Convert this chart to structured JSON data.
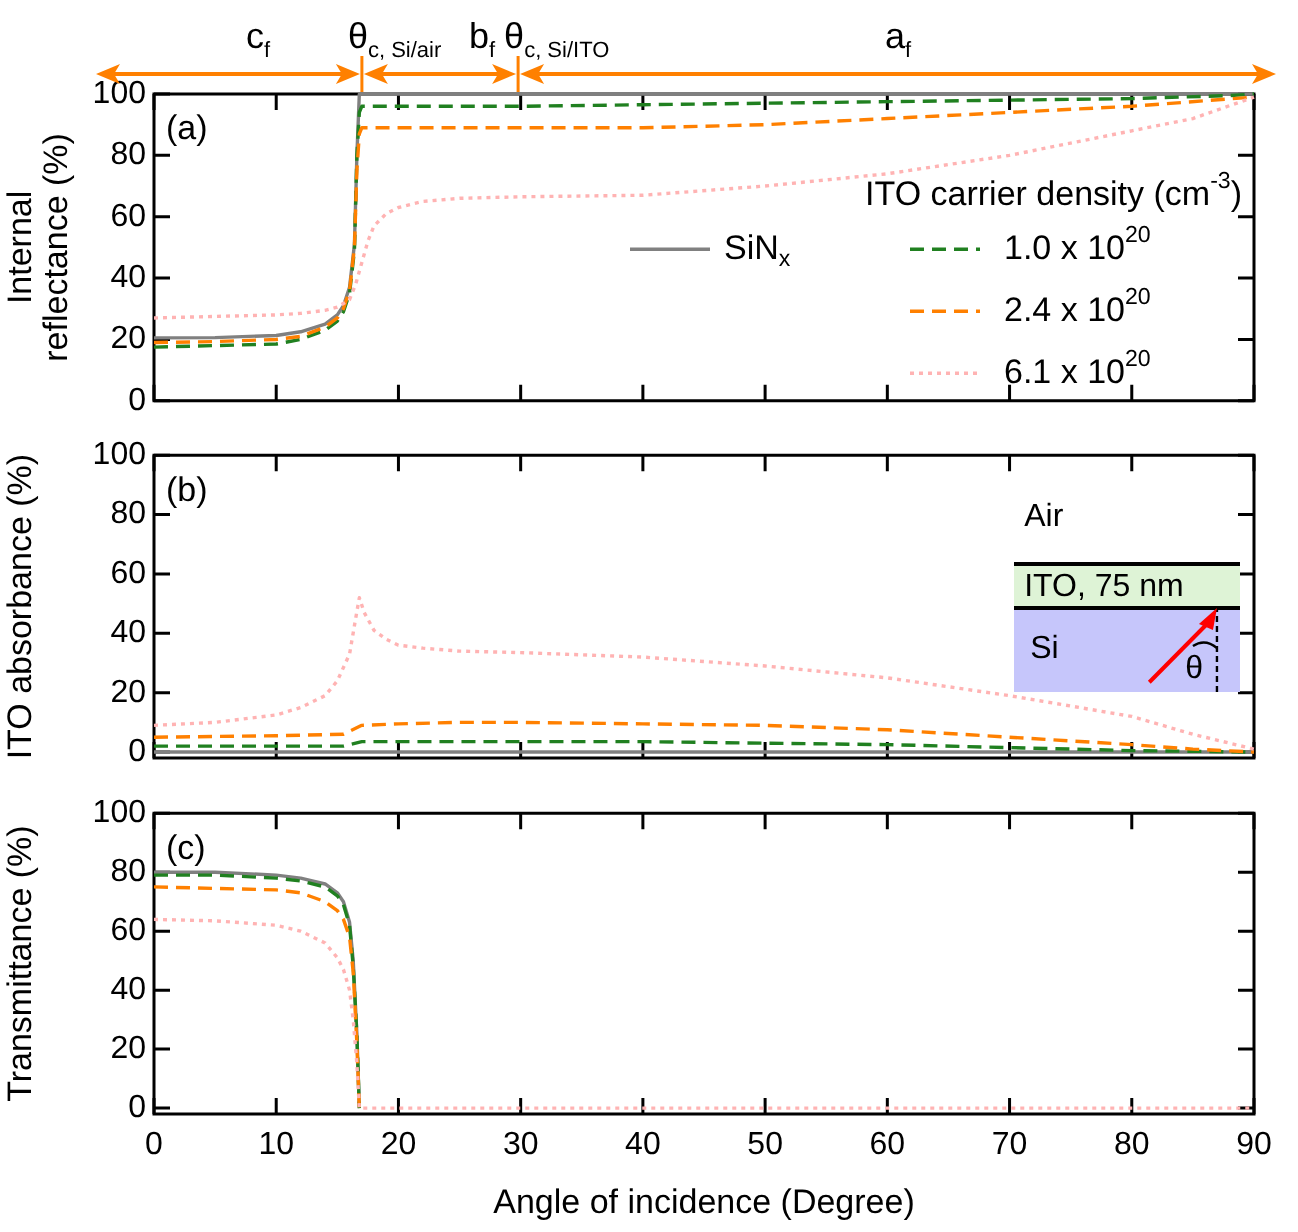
{
  "chart_data": [
    {
      "type": "line",
      "ylabel": "Internal reflectance (%)",
      "xlim": [
        0,
        90
      ],
      "xticks": [
        0,
        10,
        20,
        30,
        40,
        50,
        60,
        70,
        80,
        90
      ],
      "ylim": [
        0,
        100
      ],
      "yticks": [
        0,
        20,
        40,
        60,
        80,
        100
      ],
      "tick_labels": "y",
      "grid": false,
      "legend": "right",
      "legend_title": "ITO carrier density (cm$^{-3}$)",
      "annotations": [
        "(a)",
        "c$_{f}$",
        "θ$_{c, Si/air}$",
        "b$_{f}$",
        "θ$_{c, Si/ITO}$",
        "a$_{f}$"
      ],
      "series": [
        {
          "name": "SiN$_{x}$",
          "color": "#808080",
          "line_style": "solid",
          "x": [
            0,
            5,
            10,
            12,
            14,
            15,
            15.5,
            16,
            16.4,
            16.6,
            16.8,
            20,
            40,
            60,
            80,
            90
          ],
          "values": [
            20.5,
            20.6,
            21.3,
            22.5,
            25,
            28,
            31,
            37,
            51,
            80,
            100,
            100,
            100,
            100,
            100,
            100
          ]
        },
        {
          "name": "1.0 x 10$^{20}$",
          "color": "#208020",
          "line_style": "dashed",
          "x": [
            0,
            5,
            10,
            12,
            14,
            15,
            15.5,
            16,
            16.4,
            16.6,
            16.8,
            17,
            30,
            40,
            50,
            60,
            70,
            80,
            88,
            90
          ],
          "values": [
            17.5,
            18,
            18.5,
            20,
            23,
            26,
            29,
            35,
            49,
            80,
            94,
            96,
            96,
            96.5,
            97,
            97.5,
            98,
            98.5,
            99.5,
            100
          ]
        },
        {
          "name": "2.4 x 10$^{20}$",
          "color": "#ff8000",
          "line_style": "dashed",
          "x": [
            0,
            5,
            10,
            12,
            14,
            15,
            15.5,
            16,
            16.4,
            16.6,
            16.8,
            17,
            20,
            30,
            40,
            50,
            60,
            70,
            80,
            90
          ],
          "values": [
            19,
            19.3,
            20,
            21,
            24,
            27,
            30,
            36,
            50,
            75,
            87,
            89,
            89,
            89,
            89,
            90,
            92,
            94,
            96,
            99
          ]
        },
        {
          "name": "6.1 x 10$^{20}$",
          "color": "#ffb3b3",
          "line_style": "dotted",
          "x": [
            0,
            5,
            10,
            12,
            14,
            15,
            16,
            16.5,
            17,
            17.5,
            18,
            19,
            20,
            22,
            25,
            30,
            40,
            50,
            60,
            70,
            80,
            85,
            90
          ],
          "values": [
            27,
            27.5,
            28,
            28.5,
            29.5,
            30.5,
            33,
            38,
            45,
            52,
            57,
            61,
            63,
            65,
            66,
            66.5,
            67,
            70,
            74,
            80,
            88,
            92,
            99
          ]
        }
      ]
    },
    {
      "type": "line",
      "ylabel": "ITO absorbance (%)",
      "xlim": [
        0,
        90
      ],
      "xticks": [
        0,
        10,
        20,
        30,
        40,
        50,
        60,
        70,
        80,
        90
      ],
      "ylim": [
        -2,
        100
      ],
      "yticks": [
        0,
        20,
        40,
        60,
        80,
        100
      ],
      "tick_labels": "y",
      "grid": false,
      "annotations": [
        "(b)",
        "Air",
        "ITO, 75 nm",
        "Si",
        "θ"
      ],
      "series": [
        {
          "color": "#808080",
          "line_style": "solid",
          "x": [
            0,
            30,
            60,
            90
          ],
          "values": [
            0,
            0,
            0,
            0
          ]
        },
        {
          "color": "#208020",
          "line_style": "dashed",
          "x": [
            0,
            10,
            15.5,
            16.5,
            17,
            20,
            30,
            40,
            50,
            60,
            70,
            80,
            90
          ],
          "values": [
            2,
            2,
            2,
            3,
            3.5,
            3.5,
            3.5,
            3.5,
            3,
            2.5,
            1.5,
            0.5,
            0
          ]
        },
        {
          "color": "#ff8000",
          "line_style": "dashed",
          "x": [
            0,
            10,
            15.5,
            16.5,
            17,
            20,
            25,
            30,
            40,
            50,
            60,
            70,
            80,
            85,
            90
          ],
          "values": [
            5,
            5.5,
            6,
            8,
            9,
            9.5,
            10,
            10,
            9.5,
            9,
            7.5,
            5,
            2.5,
            1,
            0
          ]
        },
        {
          "color": "#ffb3b3",
          "line_style": "dotted",
          "x": [
            0,
            5,
            10,
            12,
            14,
            15,
            16,
            16.5,
            16.8,
            17.2,
            18,
            19,
            20,
            22,
            25,
            30,
            40,
            50,
            60,
            70,
            80,
            85,
            90
          ],
          "values": [
            9,
            10,
            12.5,
            15,
            19,
            24,
            33,
            45,
            52,
            47,
            41,
            38,
            36,
            35,
            34,
            33.5,
            32,
            29,
            25,
            19,
            12,
            6,
            1
          ]
        }
      ]
    },
    {
      "type": "line",
      "xlabel": "Angle of incidence (Degree)",
      "ylabel": "Transmittance (%)",
      "xlim": [
        0,
        90
      ],
      "xticks": [
        0,
        10,
        20,
        30,
        40,
        50,
        60,
        70,
        80,
        90
      ],
      "ylim": [
        -2,
        100
      ],
      "yticks": [
        0,
        20,
        40,
        60,
        80,
        100
      ],
      "grid": false,
      "annotations": [
        "(c)"
      ],
      "series": [
        {
          "color": "#808080",
          "line_style": "solid",
          "x": [
            0,
            5,
            10,
            12,
            14,
            15,
            15.5,
            16,
            16.3,
            16.6,
            16.8
          ],
          "values": [
            80,
            80,
            79,
            78,
            76,
            73,
            70,
            63,
            50,
            25,
            0
          ]
        },
        {
          "color": "#208020",
          "line_style": "dashed",
          "x": [
            0,
            5,
            10,
            12,
            14,
            15,
            15.5,
            16,
            16.3,
            16.6,
            16.8
          ],
          "values": [
            79,
            79,
            78,
            77,
            75,
            72,
            69,
            62,
            48,
            25,
            0
          ]
        },
        {
          "color": "#ff8000",
          "line_style": "dashed",
          "x": [
            0,
            5,
            10,
            12,
            14,
            15,
            15.5,
            16,
            16.3,
            16.6,
            16.8
          ],
          "values": [
            75,
            74.5,
            74,
            73,
            70,
            67,
            64,
            58,
            46,
            22,
            0
          ]
        },
        {
          "color": "#ffb3b3",
          "line_style": "dotted",
          "x": [
            0,
            5,
            10,
            12,
            14,
            15,
            15.5,
            16,
            16.3,
            16.6,
            16.8,
            20,
            40,
            60,
            80,
            90
          ],
          "values": [
            64,
            63.5,
            62,
            60,
            56,
            51,
            47,
            40,
            30,
            15,
            0,
            0,
            0,
            0,
            0,
            0
          ]
        }
      ]
    }
  ]
}
